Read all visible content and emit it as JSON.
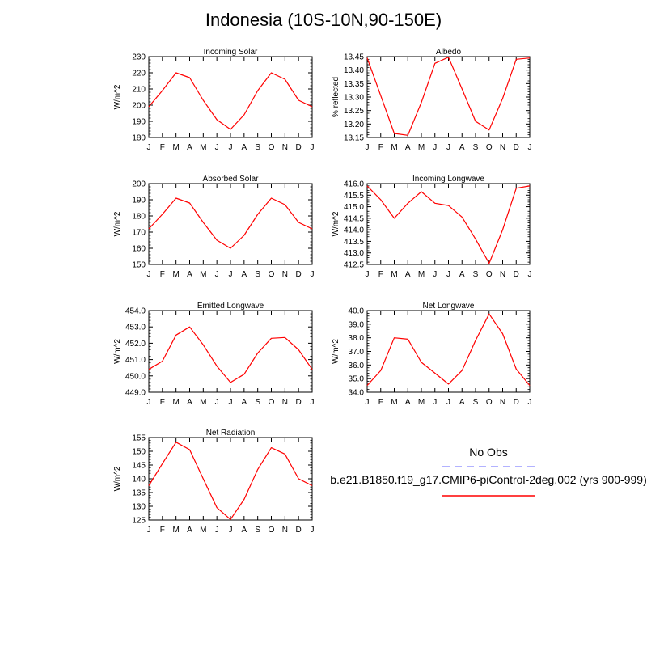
{
  "title": "Indonesia (10S-10N,90-150E)",
  "colors": {
    "model": "#ff0000",
    "obs": "#9999ff"
  },
  "legend": {
    "obs_label": "No Obs",
    "model_label": "b.e21.B1850.f19_g17.CMIP6-piControl-2deg.002 (yrs 900-999)"
  },
  "chart_data": [
    {
      "type": "line",
      "title": "Incoming Solar",
      "ylabel": "W/m^2",
      "categories": [
        "J",
        "F",
        "M",
        "A",
        "M",
        "J",
        "J",
        "A",
        "S",
        "O",
        "N",
        "D",
        "J"
      ],
      "ylim": [
        180,
        230
      ],
      "yticks": [
        180,
        190,
        200,
        210,
        220,
        230
      ],
      "ytick_labels": [
        "180",
        "190",
        "200",
        "210",
        "220",
        "230"
      ],
      "series": [
        {
          "values": [
            199,
            209,
            220,
            217,
            203,
            191,
            185,
            194,
            209,
            220,
            216,
            203,
            199
          ]
        }
      ]
    },
    {
      "type": "line",
      "title": "Albedo",
      "ylabel": "% reflected",
      "categories": [
        "J",
        "F",
        "M",
        "A",
        "M",
        "J",
        "J",
        "A",
        "S",
        "O",
        "N",
        "D",
        "J"
      ],
      "ylim": [
        13.15,
        13.45
      ],
      "yticks": [
        13.15,
        13.2,
        13.25,
        13.3,
        13.35,
        13.4,
        13.45
      ],
      "ytick_labels": [
        "13.15",
        "13.20",
        "13.25",
        "13.30",
        "13.35",
        "13.40",
        "13.45"
      ],
      "series": [
        {
          "values": [
            13.445,
            13.305,
            13.165,
            13.158,
            13.28,
            13.425,
            13.448,
            13.33,
            13.21,
            13.178,
            13.295,
            13.44,
            13.445
          ]
        }
      ]
    },
    {
      "type": "line",
      "title": "Absorbed Solar",
      "ylabel": "W/m^2",
      "categories": [
        "J",
        "F",
        "M",
        "A",
        "M",
        "J",
        "J",
        "A",
        "S",
        "O",
        "N",
        "D",
        "J"
      ],
      "ylim": [
        150,
        200
      ],
      "yticks": [
        150,
        160,
        170,
        180,
        190,
        200
      ],
      "ytick_labels": [
        "150",
        "160",
        "170",
        "180",
        "190",
        "200"
      ],
      "series": [
        {
          "values": [
            172,
            181,
            191,
            188,
            176,
            165,
            160,
            168,
            181,
            191,
            187,
            176,
            172
          ]
        }
      ]
    },
    {
      "type": "line",
      "title": "Incoming Longwave",
      "ylabel": "W/m^2",
      "categories": [
        "J",
        "F",
        "M",
        "A",
        "M",
        "J",
        "J",
        "A",
        "S",
        "O",
        "N",
        "D",
        "J"
      ],
      "ylim": [
        412.5,
        416.0
      ],
      "yticks": [
        412.5,
        413.0,
        413.5,
        414.0,
        414.5,
        415.0,
        415.5,
        416.0
      ],
      "ytick_labels": [
        "412.5",
        "413.0",
        "413.5",
        "414.0",
        "414.5",
        "415.0",
        "415.5",
        "416.0"
      ],
      "series": [
        {
          "values": [
            415.9,
            415.3,
            414.5,
            415.15,
            415.65,
            415.15,
            415.05,
            414.55,
            413.6,
            412.55,
            414.0,
            415.8,
            415.9
          ]
        }
      ]
    },
    {
      "type": "line",
      "title": "Emitted Longwave",
      "ylabel": "W/m^2",
      "categories": [
        "J",
        "F",
        "M",
        "A",
        "M",
        "J",
        "J",
        "A",
        "S",
        "O",
        "N",
        "D",
        "J"
      ],
      "ylim": [
        449.0,
        454.0
      ],
      "yticks": [
        449,
        450,
        451,
        452,
        453,
        454
      ],
      "ytick_labels": [
        "449.0",
        "450.0",
        "451.0",
        "452.0",
        "453.0",
        "454.0"
      ],
      "series": [
        {
          "values": [
            450.4,
            450.9,
            452.5,
            453.0,
            451.9,
            450.6,
            449.6,
            450.1,
            451.4,
            452.3,
            452.35,
            451.6,
            450.4
          ]
        }
      ]
    },
    {
      "type": "line",
      "title": "Net Longwave",
      "ylabel": "W/m^2",
      "categories": [
        "J",
        "F",
        "M",
        "A",
        "M",
        "J",
        "J",
        "A",
        "S",
        "O",
        "N",
        "D",
        "J"
      ],
      "ylim": [
        34.0,
        40.0
      ],
      "yticks": [
        34,
        35,
        36,
        37,
        38,
        39,
        40
      ],
      "ytick_labels": [
        "34.0",
        "35.0",
        "36.0",
        "37.0",
        "38.0",
        "39.0",
        "40.0"
      ],
      "series": [
        {
          "values": [
            34.5,
            35.6,
            38.0,
            37.9,
            36.2,
            35.4,
            34.6,
            35.6,
            37.8,
            39.75,
            38.3,
            35.7,
            34.5
          ]
        }
      ]
    },
    {
      "type": "line",
      "title": "Net Radiation",
      "ylabel": "W/m^2",
      "categories": [
        "J",
        "F",
        "M",
        "A",
        "M",
        "J",
        "J",
        "A",
        "S",
        "O",
        "N",
        "D",
        "J"
      ],
      "ylim": [
        125,
        155
      ],
      "yticks": [
        125,
        130,
        135,
        140,
        145,
        150,
        155
      ],
      "ytick_labels": [
        "125",
        "130",
        "135",
        "140",
        "145",
        "150",
        "155"
      ],
      "series": [
        {
          "values": [
            137.5,
            145.5,
            153.3,
            150.6,
            140.0,
            129.5,
            125.2,
            132.5,
            143.4,
            151.3,
            149.0,
            140.0,
            137.5
          ]
        }
      ]
    }
  ]
}
